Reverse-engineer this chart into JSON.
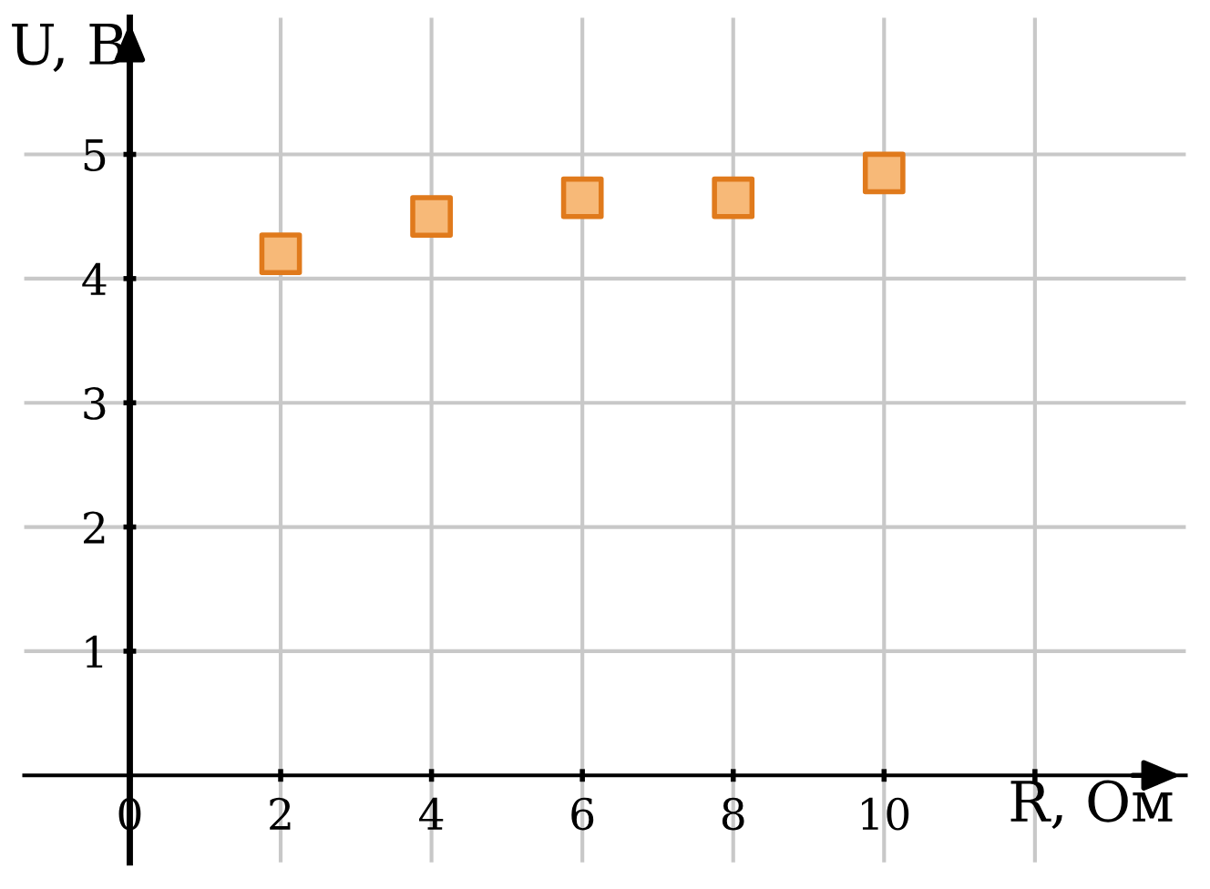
{
  "chart_data": {
    "type": "scatter",
    "xlabel": "R, Ом",
    "ylabel": "U, В",
    "x": [
      2,
      4,
      6,
      8,
      10
    ],
    "series": [
      {
        "color": "#f7b978",
        "values": [
          4.2,
          4.5,
          4.65,
          4.65,
          4.85
        ]
      }
    ],
    "xlim": [
      -1.4,
      14
    ],
    "ylim": [
      -0.7,
      6.1
    ],
    "xticks": [
      {
        "value": 0,
        "label": "0"
      },
      2,
      4,
      6,
      8,
      10,
      {
        "value": 12,
        "label": null
      }
    ],
    "yticks": [
      1,
      2,
      3,
      4,
      5
    ],
    "grid": true,
    "marker": "square",
    "legend": false
  }
}
